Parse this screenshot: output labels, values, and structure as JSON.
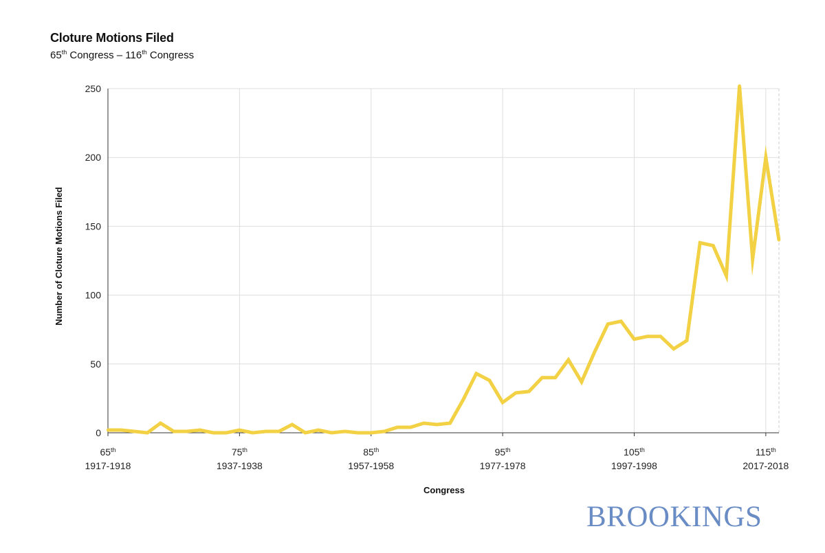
{
  "chart_data": {
    "type": "line",
    "title": "Cloture Motions Filed",
    "subtitle": {
      "start_num": "65",
      "start_sup": "th",
      "start_word": " Congress",
      "dash": " – ",
      "end_num": "116",
      "end_sup": "th",
      "end_word": " Congress"
    },
    "xlabel": "Congress",
    "ylabel": "Number of Cloture Motions Filed",
    "xlim": [
      65,
      116
    ],
    "ylim": [
      0,
      250
    ],
    "grid": true,
    "y_ticks": [
      0,
      50,
      100,
      150,
      200,
      250
    ],
    "x_ticks": [
      {
        "congress": 65,
        "num": "65",
        "sup": "th",
        "years": "1917-1918"
      },
      {
        "congress": 75,
        "num": "75",
        "sup": "th",
        "years": "1937-1938"
      },
      {
        "congress": 85,
        "num": "85",
        "sup": "th",
        "years": "1957-1958"
      },
      {
        "congress": 95,
        "num": "95",
        "sup": "th",
        "years": "1977-1978"
      },
      {
        "congress": 105,
        "num": "105",
        "sup": "th",
        "years": "1997-1998"
      },
      {
        "congress": 115,
        "num": "115",
        "sup": "th",
        "years": "2017-2018"
      }
    ],
    "line_color": "#f2d144",
    "series": [
      {
        "x": [
          65,
          66,
          67,
          68,
          69,
          70,
          71,
          72,
          73,
          74,
          75,
          76,
          77,
          78,
          79,
          80,
          81,
          82,
          83,
          84,
          85,
          86,
          87,
          88,
          89,
          90,
          91,
          92,
          93,
          94,
          95,
          96,
          97,
          98,
          99,
          100,
          101,
          102,
          103,
          104,
          105,
          106,
          107,
          108,
          109,
          110,
          111,
          112,
          113,
          114,
          115,
          116
        ],
        "values": [
          2,
          2,
          1,
          0,
          7,
          1,
          1,
          2,
          0,
          0,
          2,
          0,
          1,
          1,
          6,
          0,
          2,
          0,
          1,
          0,
          0,
          1,
          4,
          4,
          7,
          6,
          7,
          24,
          43,
          38,
          22,
          29,
          30,
          40,
          40,
          53,
          37,
          59,
          79,
          81,
          68,
          70,
          70,
          61,
          67,
          138,
          136,
          114,
          252,
          126,
          200,
          140
        ]
      }
    ]
  },
  "brand": {
    "name": "BROOKINGS",
    "color": "#6a8cc4"
  }
}
